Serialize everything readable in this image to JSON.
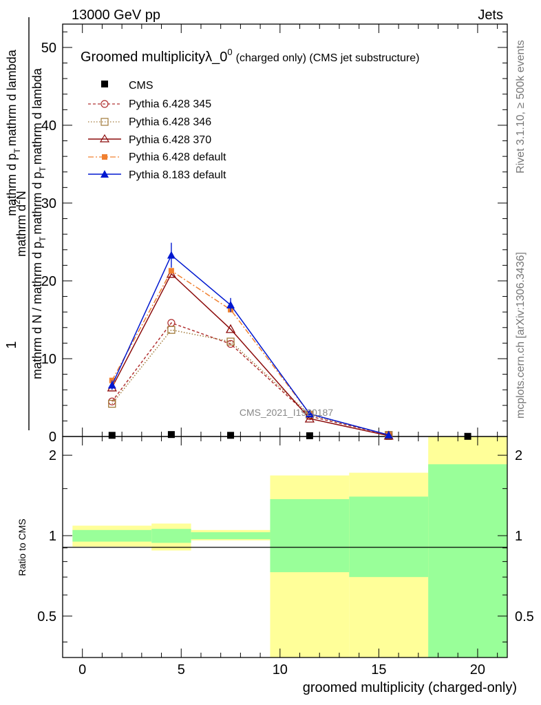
{
  "header": {
    "energy": "13000 GeV pp",
    "category": "Jets"
  },
  "side_labels": {
    "rivet": "Rivet 3.1.10, ≥ 500k events",
    "mcplots": "mcplots.cern.ch [arXiv:1306.3436]"
  },
  "watermark": "CMS_2021_I1920187",
  "colors": {
    "cms": "#000000",
    "p345": "#b03030",
    "p346": "#a07838",
    "p370": "#8b0a0a",
    "p6def": "#f08030",
    "p8def": "#0018d0",
    "band_inner": "#99ff99",
    "band_outer": "#ffff99"
  },
  "chart_data": [
    {
      "type": "line",
      "title": {
        "main": "Groomed multiplicityλ_0",
        "sup": "0",
        "small": "(charged only) (CMS jet substructure)"
      },
      "ylabel": {
        "line1": "mathrm d²N",
        "line2": "1 / mathrm d N / mathrm d p_T mathrm d p_T mathrm d lambda"
      },
      "ylabel_parts": {
        "top_num": "mathrm d",
        "top_sup": "2",
        "top_N": "N",
        "top_den_a": "mathrm d p",
        "top_den_sub": "T",
        "top_den_b": "mathrm d lambda",
        "one": "1",
        "bot_a": "mathrm d N / mathrm d p",
        "bot_sub": "T",
        "bot_b": "mathrm d p",
        "bot_sub2": "T",
        "bot_c": "mathrm d lambda"
      },
      "xlim": [
        -1,
        21.5
      ],
      "ylim": [
        0,
        53
      ],
      "yticks": [
        0,
        10,
        20,
        30,
        40,
        50
      ],
      "series": [
        {
          "name": "CMS",
          "x": [
            1.5,
            4.5,
            7.5,
            11.5,
            15.5,
            19.5
          ],
          "y": [
            0.15,
            0.25,
            0.15,
            0.1,
            0.02,
            0.02
          ]
        },
        {
          "name": "Pythia 6.428 345",
          "x": [
            1.5,
            4.5,
            7.5,
            11.5,
            15.5
          ],
          "y": [
            4.5,
            14.6,
            11.9,
            2.6,
            0.2
          ]
        },
        {
          "name": "Pythia 6.428 346",
          "x": [
            1.5,
            4.5,
            7.5,
            11.5,
            15.5
          ],
          "y": [
            4.2,
            13.7,
            12.2,
            2.8,
            0.2
          ]
        },
        {
          "name": "Pythia 6.428 370",
          "x": [
            1.5,
            4.5,
            7.5,
            11.5,
            15.5
          ],
          "y": [
            6.3,
            20.9,
            13.8,
            2.3,
            0.1
          ]
        },
        {
          "name": "Pythia 6.428 default",
          "x": [
            1.5,
            4.5,
            7.5,
            11.5,
            15.5
          ],
          "y": [
            7.2,
            21.3,
            16.3,
            2.9,
            0.2
          ]
        },
        {
          "name": "Pythia 8.183 default",
          "x": [
            1.5,
            4.5,
            7.5,
            11.5,
            15.5
          ],
          "y": [
            6.6,
            23.3,
            16.9,
            2.9,
            0.2
          ],
          "err": [
            0.6,
            1.6,
            0.9,
            0.3,
            0.05
          ]
        }
      ]
    },
    {
      "type": "area",
      "ylabel": "Ratio to CMS",
      "ylim": [
        0.35,
        2.35
      ],
      "yticks": [
        0.5,
        1,
        2
      ],
      "ytick_labels": [
        "0.5",
        "1",
        "2"
      ],
      "xticks": [
        0,
        5,
        10,
        15,
        20
      ],
      "xlabel": "groomed multiplicity (charged-only)",
      "bins": [
        {
          "lo": -0.5,
          "hi": 3.5,
          "inner": [
            0.95,
            1.05
          ],
          "outer": [
            0.91,
            1.09
          ]
        },
        {
          "lo": 3.5,
          "hi": 5.5,
          "inner": [
            0.94,
            1.06
          ],
          "outer": [
            0.88,
            1.11
          ]
        },
        {
          "lo": 5.5,
          "hi": 9.5,
          "inner": [
            0.97,
            1.03
          ],
          "outer": [
            0.96,
            1.05
          ]
        },
        {
          "lo": 9.5,
          "hi": 13.5,
          "inner": [
            0.73,
            1.37
          ],
          "outer": [
            0.35,
            1.68
          ]
        },
        {
          "lo": 13.5,
          "hi": 17.5,
          "inner": [
            0.7,
            1.4
          ],
          "outer": [
            0.35,
            1.72
          ]
        },
        {
          "lo": 17.5,
          "hi": 21.5,
          "inner": [
            0.35,
            1.85
          ],
          "outer": [
            0.35,
            2.35
          ]
        }
      ]
    }
  ]
}
